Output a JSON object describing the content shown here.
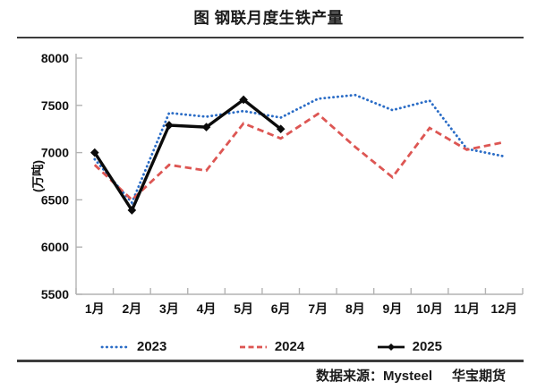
{
  "header": {
    "title": "图 钢联月度生铁产量"
  },
  "chart_data": {
    "type": "line",
    "title": "图 钢联月度生铁产量",
    "xlabel": "",
    "ylabel": "(万吨)",
    "ylim": [
      5500,
      8000
    ],
    "yticks": [
      5500,
      6000,
      6500,
      7000,
      7500,
      8000
    ],
    "grid": false,
    "legend_position": "bottom",
    "categories": [
      "1月",
      "2月",
      "3月",
      "4月",
      "5月",
      "6月",
      "7月",
      "8月",
      "9月",
      "10月",
      "11月",
      "12月"
    ],
    "series": [
      {
        "name": "2023",
        "style": "dotted",
        "marker": "none",
        "color": "#2a6cc6",
        "values": [
          6930,
          6470,
          7420,
          7380,
          7440,
          7370,
          7570,
          7610,
          7450,
          7550,
          7040,
          6960
        ]
      },
      {
        "name": "2024",
        "style": "dashed",
        "marker": "none",
        "color": "#dd5653",
        "values": [
          6870,
          6500,
          6870,
          6810,
          7310,
          7150,
          7410,
          7060,
          6740,
          7260,
          7030,
          7110
        ]
      },
      {
        "name": "2025",
        "style": "solid",
        "marker": "diamond",
        "color": "#0b0b0b",
        "values": [
          7000,
          6390,
          7290,
          7270,
          7560,
          7250
        ]
      }
    ],
    "axis_color": "#b3b3b3",
    "tick_label_color": "#111111"
  },
  "footer": {
    "source_label": "数据来源：Mysteel",
    "brand": "华宝期货"
  }
}
